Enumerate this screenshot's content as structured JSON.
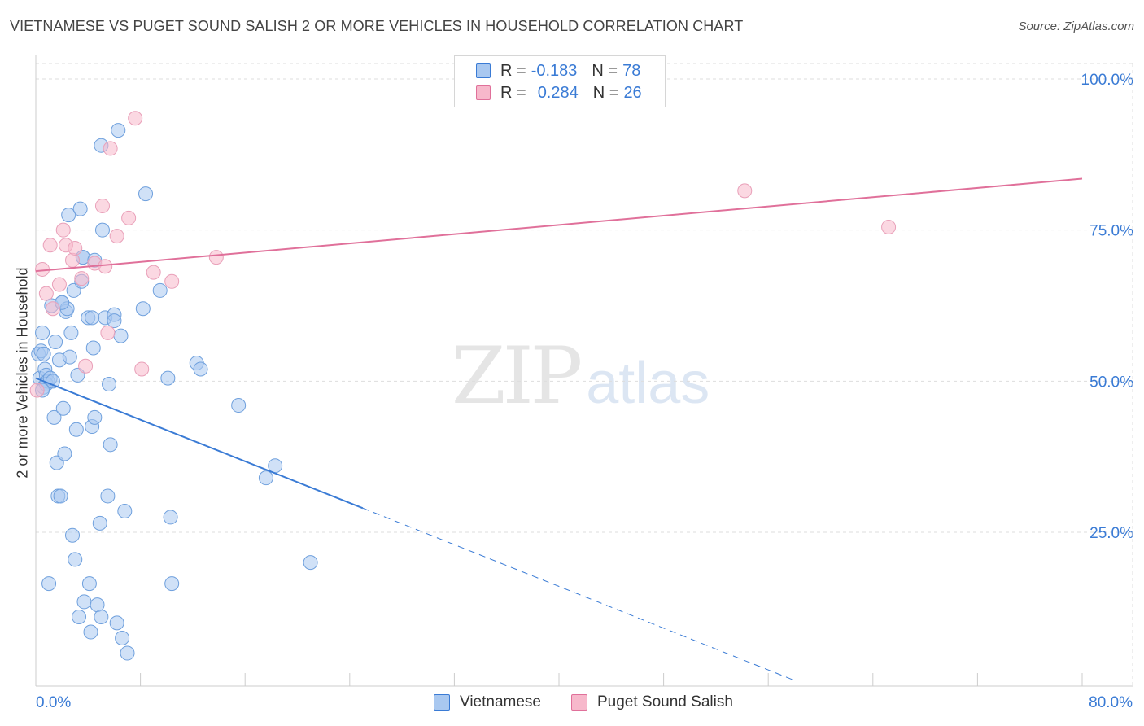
{
  "title": "VIETNAMESE VS PUGET SOUND SALISH 2 OR MORE VEHICLES IN HOUSEHOLD CORRELATION CHART",
  "source": "Source: ZipAtlas.com",
  "watermark": {
    "zip": "ZIP",
    "atlas": "atlas"
  },
  "legend": [
    {
      "r_label": "R =",
      "r_value": "-0.183",
      "n_label": "N =",
      "n_value": "78",
      "color": "#a9c8f0"
    },
    {
      "r_label": "R =",
      "r_value": "0.284",
      "n_label": "N =",
      "n_value": "26",
      "color": "#f7b8cb"
    }
  ],
  "bottom_legend": [
    "Vietnamese",
    "Puget Sound Salish"
  ],
  "chart_data": {
    "type": "scatter",
    "title": "VIETNAMESE VS PUGET SOUND SALISH 2 OR MORE VEHICLES IN HOUSEHOLD CORRELATION CHART",
    "xlabel": "",
    "ylabel": "2 or more Vehicles in Household",
    "xlim": [
      0,
      80
    ],
    "ylim": [
      0,
      105
    ],
    "x_ticks_labels": [
      "0.0%",
      "80.0%"
    ],
    "y_ticks_labels": [
      "25.0%",
      "50.0%",
      "75.0%",
      "100.0%"
    ],
    "y_ticks": [
      25,
      50,
      75,
      100
    ],
    "grid": true,
    "legend_position": "top-center",
    "colors": {
      "vietnamese": "#3a7bd5",
      "salish": "#e0709a",
      "vietnamese_fill": "#a9c8f0",
      "salish_fill": "#f7b8cb"
    },
    "series": [
      {
        "name": "Vietnamese",
        "points": [
          [
            0.2,
            54.5
          ],
          [
            0.3,
            50.5
          ],
          [
            0.4,
            55.0
          ],
          [
            0.5,
            58.0
          ],
          [
            0.6,
            49.0
          ],
          [
            0.7,
            52.0
          ],
          [
            0.8,
            51.0
          ],
          [
            0.9,
            50.0
          ],
          [
            1.0,
            16.5
          ],
          [
            1.2,
            62.5
          ],
          [
            1.4,
            44.0
          ],
          [
            1.5,
            56.5
          ],
          [
            1.6,
            36.5
          ],
          [
            1.7,
            31.0
          ],
          [
            1.8,
            53.5
          ],
          [
            1.9,
            31.0
          ],
          [
            2.0,
            63.0
          ],
          [
            2.1,
            45.5
          ],
          [
            2.2,
            38.0
          ],
          [
            2.3,
            61.5
          ],
          [
            2.4,
            62.0
          ],
          [
            2.5,
            77.5
          ],
          [
            2.6,
            54.0
          ],
          [
            2.7,
            58.0
          ],
          [
            2.8,
            24.5
          ],
          [
            2.9,
            65.0
          ],
          [
            3.0,
            20.5
          ],
          [
            3.1,
            42.0
          ],
          [
            3.2,
            51.0
          ],
          [
            3.3,
            11.0
          ],
          [
            3.4,
            78.5
          ],
          [
            3.5,
            66.5
          ],
          [
            3.6,
            70.5
          ],
          [
            3.7,
            13.5
          ],
          [
            4.0,
            60.5
          ],
          [
            4.1,
            16.5
          ],
          [
            4.2,
            8.5
          ],
          [
            4.3,
            42.5
          ],
          [
            4.4,
            55.5
          ],
          [
            4.5,
            44.0
          ],
          [
            4.7,
            13.0
          ],
          [
            4.9,
            26.5
          ],
          [
            5.0,
            11.0
          ],
          [
            5.1,
            75.0
          ],
          [
            5.3,
            60.5
          ],
          [
            5.5,
            31.0
          ],
          [
            5.6,
            49.5
          ],
          [
            5.7,
            39.5
          ],
          [
            6.0,
            61.0
          ],
          [
            6.2,
            10.0
          ],
          [
            6.3,
            91.5
          ],
          [
            6.5,
            57.5
          ],
          [
            6.6,
            7.5
          ],
          [
            6.8,
            28.5
          ],
          [
            7.0,
            5.0
          ],
          [
            8.2,
            62.0
          ],
          [
            8.4,
            81.0
          ],
          [
            9.5,
            65.0
          ],
          [
            10.1,
            50.5
          ],
          [
            10.3,
            27.5
          ],
          [
            10.4,
            16.5
          ],
          [
            12.3,
            53.0
          ],
          [
            12.6,
            52.0
          ],
          [
            15.5,
            46.0
          ],
          [
            17.6,
            34.0
          ],
          [
            18.3,
            36.0
          ],
          [
            21.0,
            20.0
          ],
          [
            5.0,
            89.0
          ],
          [
            0.6,
            54.5
          ],
          [
            0.8,
            49.5
          ],
          [
            1.1,
            50.5
          ],
          [
            3.6,
            70.5
          ],
          [
            4.3,
            60.5
          ],
          [
            2.0,
            63.0
          ],
          [
            0.5,
            48.5
          ],
          [
            1.3,
            50.0
          ],
          [
            4.5,
            70.0
          ],
          [
            6.0,
            60.0
          ]
        ]
      },
      {
        "name": "Puget Sound Salish",
        "points": [
          [
            0.1,
            48.5
          ],
          [
            0.5,
            68.5
          ],
          [
            0.8,
            64.5
          ],
          [
            1.1,
            72.5
          ],
          [
            1.3,
            62.0
          ],
          [
            1.8,
            66.0
          ],
          [
            2.1,
            75.0
          ],
          [
            2.3,
            72.5
          ],
          [
            2.8,
            70.0
          ],
          [
            3.0,
            72.0
          ],
          [
            3.5,
            67.0
          ],
          [
            3.8,
            52.5
          ],
          [
            4.5,
            69.5
          ],
          [
            5.1,
            79.0
          ],
          [
            5.3,
            69.0
          ],
          [
            5.5,
            58.0
          ],
          [
            5.7,
            88.5
          ],
          [
            6.2,
            74.0
          ],
          [
            7.1,
            77.0
          ],
          [
            7.6,
            93.5
          ],
          [
            8.1,
            52.0
          ],
          [
            9.0,
            68.0
          ],
          [
            10.4,
            66.5
          ],
          [
            13.8,
            70.5
          ],
          [
            54.2,
            81.5
          ],
          [
            65.2,
            75.5
          ]
        ]
      }
    ],
    "trendlines": [
      {
        "series": "Vietnamese",
        "x0": 0,
        "y0": 50.5,
        "x1": 25,
        "y1": 29.0,
        "dashed_to_x": 58.0,
        "dashed_to_y": 0.5
      },
      {
        "series": "Puget Sound Salish",
        "x0": 0,
        "y0": 68.2,
        "x1": 80,
        "y1": 83.5
      }
    ]
  }
}
